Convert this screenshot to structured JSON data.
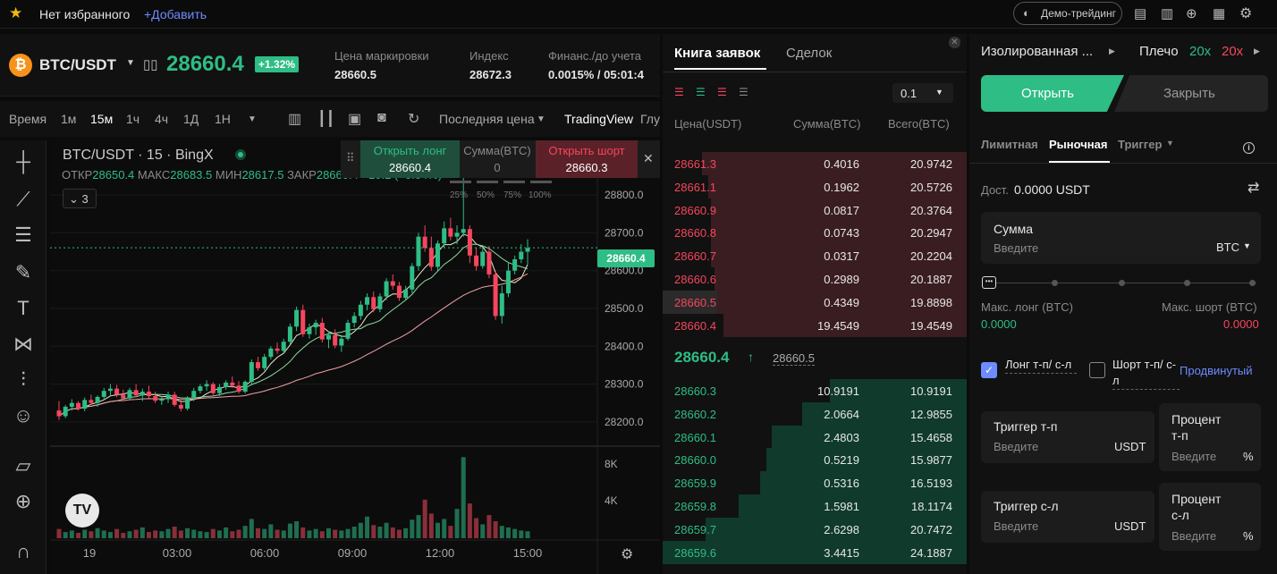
{
  "topbar": {
    "favorites": "Нет избранного",
    "add": "+Добавить",
    "demo": "Демо-трейдинг"
  },
  "header": {
    "symbol": "BTC/USDT",
    "price": "28660.4",
    "change": "+1.32%",
    "mark_label": "Цена маркировки",
    "mark_value": "28660.5",
    "index_label": "Индекс",
    "index_value": "28672.3",
    "funding_label": "Финанс./до учета",
    "funding_value": "0.0015% / 05:01:4"
  },
  "timeframes": [
    "Время",
    "1м",
    "15м",
    "1ч",
    "4ч",
    "1Д",
    "1Н"
  ],
  "toolbar": {
    "last_price": "Последняя цена",
    "tradingview": "TradingView",
    "glu": "Глу"
  },
  "chart": {
    "title": "BTC/USDT · 15 · BingX",
    "ohlc_open_lbl": "ОТКР",
    "ohlc_open": "28650.4",
    "ohlc_high_lbl": "МАКС",
    "ohlc_high": "28683.5",
    "ohlc_low_lbl": "МИН",
    "ohlc_low": "28617.5",
    "ohlc_close_lbl": "ЗАКР",
    "ohlc_close": "28660.4 +10.2 (+0.04%)",
    "indicators": "3",
    "price_tag": "28660.4"
  },
  "quick_trade": {
    "long_label": "Открыть лонг",
    "long_price": "28660.4",
    "size_label": "Сумма(BTC)",
    "size_value": "0",
    "short_label": "Открыть шорт",
    "short_price": "28660.3",
    "pcts": [
      "25%",
      "50%",
      "75%",
      "100%"
    ]
  },
  "chart_data": {
    "type": "candlestick",
    "y_ticks": [
      "28800.0",
      "28700.0",
      "28600.0",
      "28500.0",
      "28400.0",
      "28300.0",
      "28200.0"
    ],
    "x_ticks": [
      "19",
      "03:00",
      "06:00",
      "09:00",
      "12:00",
      "15:00"
    ],
    "volume_ticks": [
      "8K",
      "4K"
    ],
    "candles": [
      [
        28230,
        28255,
        28205,
        28215
      ],
      [
        28215,
        28245,
        28210,
        28240
      ],
      [
        28240,
        28260,
        28230,
        28250
      ],
      [
        28250,
        28255,
        28230,
        28235
      ],
      [
        28235,
        28265,
        28228,
        28258
      ],
      [
        28258,
        28272,
        28245,
        28250
      ],
      [
        28250,
        28270,
        28240,
        28266
      ],
      [
        28266,
        28290,
        28258,
        28282
      ],
      [
        28282,
        28300,
        28270,
        28288
      ],
      [
        28288,
        28298,
        28265,
        28272
      ],
      [
        28272,
        28285,
        28255,
        28262
      ],
      [
        28262,
        28290,
        28258,
        28284
      ],
      [
        28284,
        28300,
        28266,
        28270
      ],
      [
        28270,
        28288,
        28255,
        28280
      ],
      [
        28280,
        28296,
        28262,
        28268
      ],
      [
        28268,
        28280,
        28250,
        28256
      ],
      [
        28256,
        28268,
        28245,
        28260
      ],
      [
        28260,
        28280,
        28250,
        28272
      ],
      [
        28272,
        28280,
        28240,
        28245
      ],
      [
        28245,
        28260,
        28228,
        28235
      ],
      [
        28235,
        28268,
        28230,
        28262
      ],
      [
        28262,
        28290,
        28255,
        28282
      ],
      [
        28282,
        28300,
        28275,
        28294
      ],
      [
        28294,
        28310,
        28282,
        28300
      ],
      [
        28300,
        28305,
        28270,
        28276
      ],
      [
        28276,
        28300,
        28268,
        28292
      ],
      [
        28292,
        28310,
        28285,
        28304
      ],
      [
        28304,
        28320,
        28290,
        28296
      ],
      [
        28296,
        28308,
        28275,
        28280
      ],
      [
        28280,
        28310,
        28275,
        28306
      ],
      [
        28306,
        28365,
        28300,
        28358
      ],
      [
        28358,
        28372,
        28335,
        28342
      ],
      [
        28342,
        28380,
        28336,
        28372
      ],
      [
        28372,
        28400,
        28365,
        28394
      ],
      [
        28394,
        28410,
        28380,
        28388
      ],
      [
        28388,
        28420,
        28382,
        28412
      ],
      [
        28412,
        28460,
        28405,
        28452
      ],
      [
        28452,
        28505,
        28440,
        28496
      ],
      [
        28496,
        28510,
        28425,
        28432
      ],
      [
        28432,
        28460,
        28420,
        28450
      ],
      [
        28450,
        28470,
        28430,
        28462
      ],
      [
        28462,
        28475,
        28410,
        28418
      ],
      [
        28418,
        28440,
        28395,
        28430
      ],
      [
        28430,
        28445,
        28395,
        28402
      ],
      [
        28402,
        28430,
        28385,
        28420
      ],
      [
        28420,
        28470,
        28415,
        28462
      ],
      [
        28462,
        28490,
        28450,
        28480
      ],
      [
        28480,
        28520,
        28470,
        28510
      ],
      [
        28510,
        28540,
        28495,
        28530
      ],
      [
        28530,
        28545,
        28490,
        28498
      ],
      [
        28498,
        28540,
        28490,
        28532
      ],
      [
        28532,
        28580,
        28522,
        28572
      ],
      [
        28572,
        28590,
        28550,
        28560
      ],
      [
        28560,
        28570,
        28520,
        28528
      ],
      [
        28528,
        28560,
        28520,
        28550
      ],
      [
        28550,
        28620,
        28540,
        28612
      ],
      [
        28612,
        28700,
        28600,
        28690
      ],
      [
        28690,
        28720,
        28650,
        28660
      ],
      [
        28660,
        28690,
        28600,
        28610
      ],
      [
        28610,
        28680,
        28600,
        28672
      ],
      [
        28672,
        28730,
        28660,
        28712
      ],
      [
        28712,
        28740,
        28680,
        28690
      ],
      [
        28690,
        28720,
        28670,
        28700
      ],
      [
        28700,
        28880,
        28690,
        28710
      ],
      [
        28710,
        28720,
        28620,
        28640
      ],
      [
        28640,
        28660,
        28600,
        28612
      ],
      [
        28612,
        28660,
        28605,
        28650
      ],
      [
        28650,
        28665,
        28580,
        28590
      ],
      [
        28590,
        28600,
        28470,
        28480
      ],
      [
        28480,
        28560,
        28460,
        28540
      ],
      [
        28540,
        28620,
        28530,
        28600
      ],
      [
        28600,
        28640,
        28590,
        28630
      ],
      [
        28630,
        28670,
        28620,
        28650
      ],
      [
        28650,
        28683,
        28617,
        28660
      ]
    ],
    "volume": [
      1.2,
      0.8,
      1.0,
      0.7,
      1.1,
      0.9,
      1.3,
      1.0,
      0.8,
      1.2,
      0.7,
      0.9,
      1.1,
      1.4,
      0.8,
      1.0,
      0.9,
      1.2,
      1.5,
      1.0,
      1.3,
      1.1,
      0.9,
      0.8,
      1.2,
      1.0,
      1.4,
      0.9,
      1.1,
      1.6,
      2.5,
      1.3,
      1.2,
      1.8,
      1.1,
      1.0,
      1.9,
      2.2,
      1.4,
      1.0,
      1.2,
      0.9,
      1.3,
      1.1,
      1.0,
      1.2,
      1.5,
      2.0,
      2.8,
      1.7,
      1.5,
      2.0,
      1.4,
      1.1,
      1.3,
      2.4,
      3.0,
      5.0,
      3.2,
      2.0,
      2.5,
      1.6,
      3.8,
      10.5,
      4.5,
      2.6,
      1.8,
      3.0,
      2.2,
      1.6,
      1.4,
      1.2,
      1.0,
      0.9
    ]
  },
  "order_book": {
    "tab_book": "Книга заявок",
    "tab_trades": "Сделок",
    "precision": "0.1",
    "col_price": "Цена(USDT)",
    "col_amount": "Сумма(BTC)",
    "col_total": "Всего(BTC)",
    "asks": [
      [
        "28661.3",
        "0.4016",
        "20.9742"
      ],
      [
        "28661.1",
        "0.1962",
        "20.5726"
      ],
      [
        "28660.9",
        "0.0817",
        "20.3764"
      ],
      [
        "28660.8",
        "0.0743",
        "20.2947"
      ],
      [
        "28660.7",
        "0.0317",
        "20.2204"
      ],
      [
        "28660.6",
        "0.2989",
        "20.1887"
      ],
      [
        "28660.5",
        "0.4349",
        "19.8898"
      ],
      [
        "28660.4",
        "19.4549",
        "19.4549"
      ]
    ],
    "last": "28660.4",
    "mark": "28660.5",
    "bids": [
      [
        "28660.3",
        "10.9191",
        "10.9191"
      ],
      [
        "28660.2",
        "2.0664",
        "12.9855"
      ],
      [
        "28660.1",
        "2.4803",
        "15.4658"
      ],
      [
        "28660.0",
        "0.5219",
        "15.9877"
      ],
      [
        "28659.9",
        "0.5316",
        "16.5193"
      ],
      [
        "28659.8",
        "1.5981",
        "18.1174"
      ],
      [
        "28659.7",
        "2.6298",
        "20.7472"
      ],
      [
        "28659.6",
        "3.4415",
        "24.1887"
      ]
    ],
    "ask_depth": [
      0.87,
      0.85,
      0.84,
      0.84,
      0.84,
      0.83,
      0.82,
      0.8
    ],
    "bid_depth": [
      0.45,
      0.54,
      0.64,
      0.66,
      0.68,
      0.75,
      0.86,
      1.0
    ]
  },
  "order_form": {
    "margin_mode": "Изолированная ...",
    "leverage_label": "Плечо",
    "lev_long": "20x",
    "lev_short": "20x",
    "open": "Открыть",
    "close": "Закрыть",
    "type_limit": "Лимитная",
    "type_market": "Рыночная",
    "type_trigger": "Триггер",
    "avail_label": "Дост.",
    "avail_value": "0.0000 USDT",
    "amount_label": "Сумма",
    "amount_placeholder": "Введите",
    "amount_unit": "BTC",
    "max_long_label": "Макс. лонг (BTC)",
    "max_long": "0.0000",
    "max_short_label": "Макс. шорт (BTC)",
    "max_short": "0.0000",
    "tp_sl_long": "Лонг т-п/ с-л",
    "tp_sl_short": "Шорт т-п/ с-л",
    "advanced": "Продвинутый",
    "tp_trigger_label": "Триггер т-п",
    "tp_placeholder": "Введите",
    "tp_unit": "USDT",
    "tp_pct_label": "Процент т-п",
    "tp_pct_placeholder": "Введите",
    "pct_unit": "%",
    "sl_trigger_label": "Триггер с-л",
    "sl_placeholder": "Введите",
    "sl_unit": "USDT",
    "sl_pct_label": "Процент с-л",
    "sl_pct_placeholder": "Введите"
  },
  "colors": {
    "green": "#2ebd85",
    "red": "#f6465d",
    "bg": "#111111"
  }
}
